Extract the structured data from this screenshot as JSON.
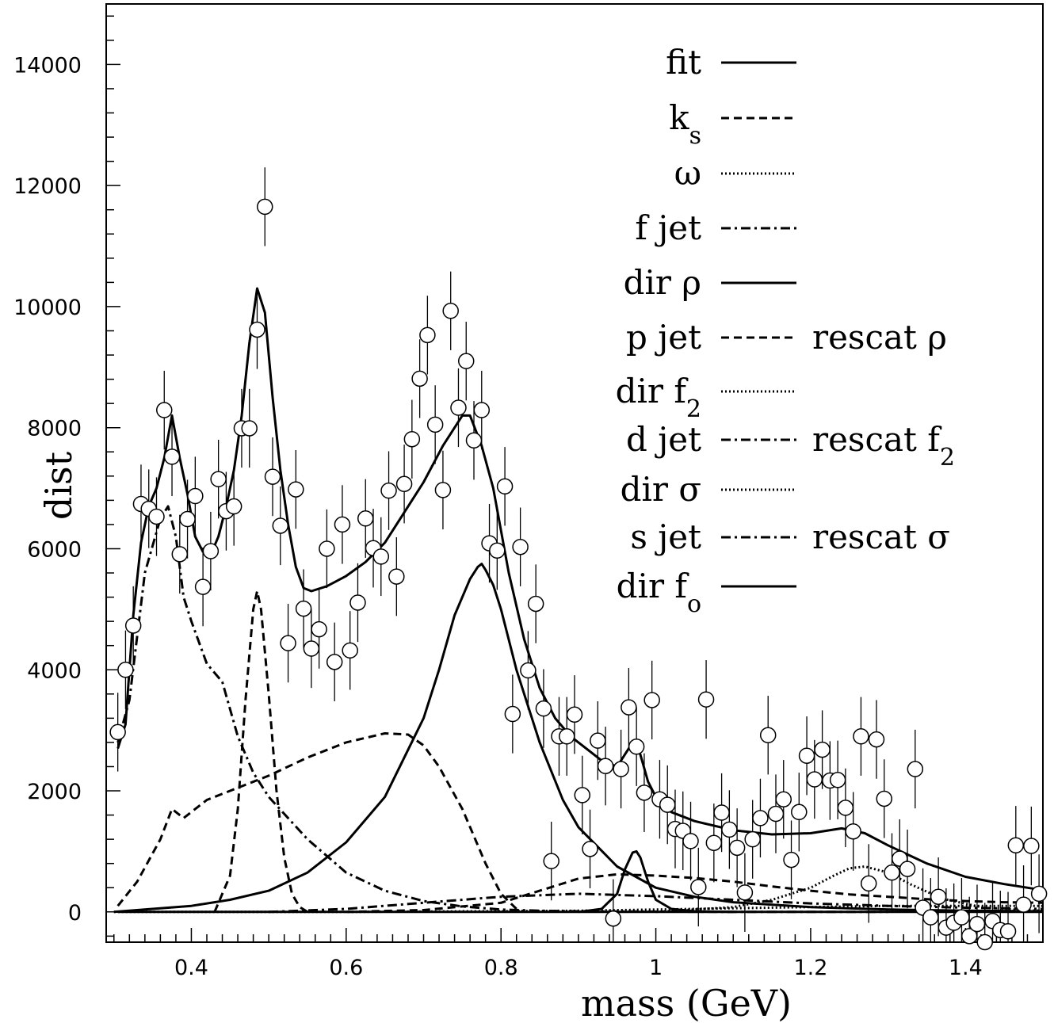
{
  "chart_data": {
    "type": "line",
    "xlabel": "mass (GeV)",
    "ylabel": "dist",
    "xlim": [
      0.29,
      1.5
    ],
    "ylim": [
      -500,
      15000
    ],
    "xticks": [
      0.4,
      0.6,
      0.8,
      1,
      1.2,
      1.4
    ],
    "xtick_labels": [
      "0.4",
      "0.6",
      "0.8",
      "1",
      "1.2",
      "1.4"
    ],
    "yticks": [
      0,
      2000,
      4000,
      6000,
      8000,
      10000,
      12000,
      14000
    ],
    "ytick_labels": [
      "0",
      "2000",
      "4000",
      "6000",
      "8000",
      "10000",
      "12000",
      "14000"
    ],
    "grid": false,
    "legend_position": "top-right",
    "legend": [
      {
        "label": "fit",
        "style": "solid"
      },
      {
        "label": "k",
        "sub": "s",
        "style": "dashed"
      },
      {
        "label": "ω",
        "style": "dotted"
      },
      {
        "label": "f jet",
        "style": "dashdot"
      },
      {
        "label": "dir ρ",
        "style": "solid"
      },
      {
        "label": "p jet",
        "style": "dashed",
        "extra": "rescat ρ"
      },
      {
        "label": "dir f",
        "sub": "2",
        "style": "dotted"
      },
      {
        "label": "d jet",
        "style": "dashdot",
        "extra": "rescat f",
        "extra_sub": "2"
      },
      {
        "label": "dir σ",
        "style": "dotted"
      },
      {
        "label": "s jet",
        "style": "dashdot",
        "extra": "rescat σ"
      },
      {
        "label": "dir f",
        "sub": "o",
        "style": "solid"
      }
    ],
    "data_points": {
      "x": [
        0.305,
        0.315,
        0.325,
        0.335,
        0.345,
        0.355,
        0.365,
        0.375,
        0.385,
        0.395,
        0.405,
        0.415,
        0.425,
        0.435,
        0.445,
        0.455,
        0.465,
        0.475,
        0.485,
        0.495,
        0.505,
        0.515,
        0.525,
        0.535,
        0.545,
        0.555,
        0.565,
        0.575,
        0.585,
        0.595,
        0.605,
        0.615,
        0.625,
        0.635,
        0.645,
        0.655,
        0.665,
        0.675,
        0.685,
        0.695,
        0.705,
        0.715,
        0.725,
        0.735,
        0.745,
        0.755,
        0.765,
        0.775,
        0.785,
        0.795,
        0.805,
        0.815,
        0.825,
        0.835,
        0.845,
        0.855,
        0.865,
        0.875,
        0.885,
        0.895,
        0.905,
        0.915,
        0.925,
        0.935,
        0.945,
        0.955,
        0.965,
        0.975,
        0.985,
        0.995,
        1.005,
        1.015,
        1.025,
        1.035,
        1.045,
        1.055,
        1.065,
        1.075,
        1.085,
        1.095,
        1.105,
        1.115,
        1.125,
        1.135,
        1.145,
        1.155,
        1.165,
        1.175,
        1.185,
        1.195,
        1.205,
        1.215,
        1.225,
        1.235,
        1.245,
        1.255,
        1.265,
        1.275,
        1.285,
        1.295,
        1.305,
        1.315,
        1.325,
        1.335,
        1.345,
        1.355,
        1.365,
        1.375,
        1.385,
        1.395,
        1.405,
        1.415,
        1.425,
        1.435,
        1.445,
        1.455,
        1.465,
        1.475,
        1.485,
        1.495
      ],
      "y": [
        2970,
        4000,
        4730,
        6740,
        6660,
        6530,
        8290,
        7520,
        5910,
        6490,
        6870,
        5370,
        5960,
        7150,
        6620,
        6700,
        7990,
        7990,
        9620,
        11650,
        7190,
        6380,
        4440,
        6980,
        5010,
        4350,
        4670,
        6000,
        4130,
        6400,
        4320,
        5110,
        6500,
        6010,
        5870,
        6960,
        5540,
        7070,
        7810,
        8810,
        9530,
        8050,
        6970,
        9930,
        8330,
        9100,
        7790,
        8290,
        6090,
        5970,
        7030,
        3270,
        6030,
        3990,
        5090,
        3360,
        840,
        2900,
        2900,
        3260,
        1930,
        1040,
        2830,
        2410,
        -110,
        2360,
        3380,
        2730,
        1970,
        3500,
        1860,
        1770,
        1370,
        1340,
        1170,
        410,
        3510,
        1140,
        1640,
        1360,
        1060,
        320,
        1200,
        1550,
        2920,
        1620,
        1860,
        860,
        1650,
        2580,
        2190,
        2680,
        2170,
        2180,
        1720,
        1330,
        2900,
        470,
        2850,
        1870,
        650,
        880,
        710,
        2360,
        70,
        -90,
        250,
        -260,
        -180,
        -90,
        -400,
        -200,
        -500,
        -150,
        -300,
        -320,
        1100,
        120,
        1090,
        300
      ],
      "error": 650
    },
    "series": [
      {
        "name": "fit",
        "style": "solid",
        "x": [
          0.305,
          0.315,
          0.325,
          0.335,
          0.345,
          0.355,
          0.365,
          0.375,
          0.385,
          0.395,
          0.405,
          0.415,
          0.425,
          0.435,
          0.445,
          0.455,
          0.465,
          0.475,
          0.485,
          0.495,
          0.505,
          0.515,
          0.525,
          0.535,
          0.545,
          0.555,
          0.575,
          0.6,
          0.625,
          0.65,
          0.675,
          0.7,
          0.725,
          0.74,
          0.75,
          0.76,
          0.775,
          0.79,
          0.81,
          0.83,
          0.85,
          0.87,
          0.89,
          0.91,
          0.93,
          0.95,
          0.96,
          0.97,
          0.98,
          0.99,
          1.0,
          1.02,
          1.05,
          1.1,
          1.15,
          1.2,
          1.24,
          1.27,
          1.3,
          1.35,
          1.4,
          1.45,
          1.5
        ],
        "y": [
          2700,
          3100,
          4900,
          6100,
          6700,
          7000,
          7500,
          8200,
          7500,
          6900,
          6200,
          5950,
          5900,
          6200,
          6700,
          7300,
          8200,
          9400,
          10300,
          9900,
          8500,
          7300,
          6400,
          5700,
          5350,
          5300,
          5380,
          5550,
          5780,
          6100,
          6600,
          7100,
          7700,
          8000,
          8200,
          8200,
          7700,
          7000,
          5600,
          4500,
          3700,
          3200,
          2900,
          2700,
          2500,
          2400,
          2600,
          2800,
          2600,
          2150,
          1900,
          1650,
          1500,
          1350,
          1280,
          1300,
          1380,
          1300,
          1100,
          800,
          580,
          460,
          360
        ]
      },
      {
        "name": "k_s",
        "style": "dashed",
        "x": [
          0.43,
          0.45,
          0.46,
          0.47,
          0.48,
          0.485,
          0.49,
          0.5,
          0.51,
          0.52,
          0.53,
          0.54,
          0.55
        ],
        "y": [
          0,
          600,
          1700,
          3500,
          5000,
          5300,
          5000,
          3600,
          2000,
          900,
          300,
          80,
          0
        ]
      },
      {
        "name": "f jet",
        "style": "dashdot",
        "x": [
          0.305,
          0.32,
          0.34,
          0.36,
          0.37,
          0.38,
          0.39,
          0.4,
          0.42,
          0.44,
          0.46,
          0.48,
          0.5,
          0.55,
          0.6,
          0.65,
          0.7,
          0.75,
          0.8,
          0.85,
          0.9,
          1.0,
          1.1,
          1.2,
          1.3
        ],
        "y": [
          2800,
          3500,
          5600,
          6500,
          6700,
          6200,
          5200,
          4800,
          4100,
          3800,
          2900,
          2300,
          1900,
          1200,
          650,
          350,
          180,
          90,
          40,
          20,
          10,
          5,
          0,
          0,
          0
        ]
      },
      {
        "name": "p jet",
        "style": "dashed",
        "x": [
          0.305,
          0.33,
          0.36,
          0.375,
          0.39,
          0.42,
          0.45,
          0.5,
          0.55,
          0.6,
          0.65,
          0.68,
          0.7,
          0.72,
          0.75,
          0.78,
          0.8,
          0.82,
          0.83
        ],
        "y": [
          100,
          500,
          1200,
          1700,
          1550,
          1850,
          2000,
          2250,
          2550,
          2800,
          2950,
          2930,
          2750,
          2400,
          1700,
          800,
          300,
          50,
          0
        ]
      },
      {
        "name": "dir ρ",
        "style": "solid",
        "x": [
          0.3,
          0.4,
          0.45,
          0.5,
          0.55,
          0.6,
          0.65,
          0.7,
          0.72,
          0.74,
          0.76,
          0.77,
          0.775,
          0.78,
          0.79,
          0.8,
          0.82,
          0.85,
          0.88,
          0.9,
          0.95,
          1.0,
          1.05,
          1.1,
          1.2,
          1.3,
          1.4,
          1.5
        ],
        "y": [
          0,
          100,
          200,
          350,
          650,
          1150,
          1900,
          3200,
          4000,
          4900,
          5500,
          5700,
          5750,
          5650,
          5400,
          5000,
          4000,
          2800,
          1850,
          1400,
          750,
          400,
          250,
          160,
          80,
          40,
          20,
          10
        ]
      },
      {
        "name": "rescat ρ",
        "style": "dashed",
        "x": [
          0.6,
          0.7,
          0.8,
          0.85,
          0.9,
          0.95,
          1.0,
          1.05,
          1.1,
          1.15,
          1.2,
          1.25,
          1.3,
          1.35,
          1.4,
          1.45,
          1.5
        ],
        "y": [
          0,
          30,
          150,
          350,
          550,
          620,
          600,
          560,
          500,
          420,
          350,
          290,
          250,
          210,
          180,
          160,
          150
        ]
      },
      {
        "name": "dir f2",
        "style": "dotted",
        "x": [
          1.0,
          1.1,
          1.15,
          1.2,
          1.23,
          1.25,
          1.27,
          1.3,
          1.33,
          1.37,
          1.42,
          1.47,
          1.5
        ],
        "y": [
          0,
          80,
          200,
          400,
          600,
          720,
          750,
          650,
          450,
          220,
          80,
          30,
          20
        ]
      },
      {
        "name": "d jet",
        "style": "dashdot",
        "x": [
          0.5,
          0.6,
          0.7,
          0.8,
          0.9,
          1.0,
          1.1,
          1.2,
          1.3,
          1.4,
          1.5
        ],
        "y": [
          0,
          50,
          150,
          250,
          300,
          260,
          200,
          140,
          100,
          70,
          50
        ]
      },
      {
        "name": "dir f_o",
        "style": "solid",
        "x": [
          0.9,
          0.93,
          0.95,
          0.96,
          0.97,
          0.975,
          0.98,
          0.99,
          1.0,
          1.02,
          1.05,
          1.1
        ],
        "y": [
          0,
          50,
          300,
          700,
          980,
          1000,
          900,
          500,
          200,
          50,
          10,
          0
        ]
      },
      {
        "name": "s jet",
        "style": "dotted",
        "x": [
          0.3,
          0.6,
          0.9,
          1.0,
          1.1,
          1.2,
          1.3,
          1.4,
          1.5
        ],
        "y": [
          0,
          0,
          20,
          40,
          60,
          80,
          100,
          100,
          100
        ]
      }
    ]
  }
}
